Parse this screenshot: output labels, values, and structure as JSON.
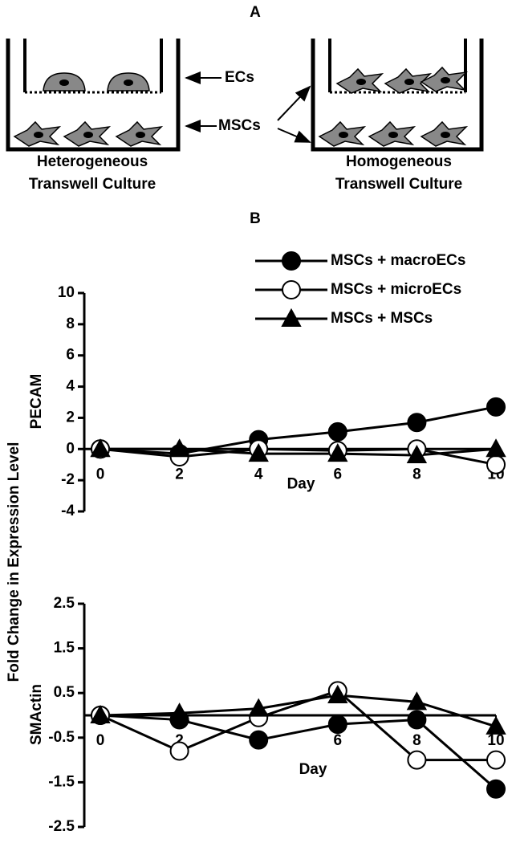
{
  "panel_labels": {
    "a": "A",
    "b": "B"
  },
  "diagram": {
    "ecs": "ECs",
    "mscs": "MSCs",
    "left_caption": [
      "Heterogeneous",
      "Transwell Culture"
    ],
    "right_caption": [
      "Homogeneous",
      "Transwell Culture"
    ]
  },
  "y_label_shared": "Fold Change in Expression Level",
  "chart_data": [
    {
      "type": "line",
      "y_label": "PECAM",
      "x_label": "Day",
      "x": [
        0,
        2,
        4,
        6,
        8,
        10
      ],
      "xlim": [
        0,
        10
      ],
      "xticks": [
        0,
        2,
        4,
        6,
        8,
        10
      ],
      "ylim": [
        -4,
        10
      ],
      "yticks": [
        -4,
        -2,
        0,
        2,
        4,
        6,
        8,
        10
      ],
      "series": [
        {
          "name": "MSCs + macroECs",
          "color": "#000000",
          "fill": "#000000",
          "marker": "circle",
          "values": [
            0,
            -0.3,
            0.6,
            1.1,
            1.7,
            2.7
          ]
        },
        {
          "name": "MSCs + microECs",
          "color": "#000000",
          "fill": "#ffffff",
          "marker": "circle",
          "values": [
            0,
            -0.5,
            0,
            -0.1,
            0,
            -1
          ]
        },
        {
          "name": "MSCs + MSCs",
          "color": "#000000",
          "fill": "#000000",
          "marker": "triangle",
          "values": [
            0,
            0,
            -0.3,
            -0.3,
            -0.4,
            0
          ]
        }
      ]
    },
    {
      "type": "line",
      "y_label": "SMActin",
      "x_label": "Day",
      "x": [
        0,
        2,
        4,
        6,
        8,
        10
      ],
      "xlim": [
        0,
        10
      ],
      "xticks": [
        0,
        2,
        4,
        6,
        8,
        10
      ],
      "ylim": [
        -2.5,
        2.5
      ],
      "yticks": [
        -2.5,
        -1.5,
        -0.5,
        0.5,
        1.5,
        2.5
      ],
      "series": [
        {
          "color": "#000000",
          "fill": "#000000",
          "marker": "circle",
          "values": [
            0,
            -0.1,
            -0.55,
            -0.2,
            -0.1,
            -1.65
          ]
        },
        {
          "color": "#000000",
          "fill": "#ffffff",
          "marker": "circle",
          "values": [
            0,
            -0.8,
            -0.05,
            0.55,
            -1.0,
            -1.0
          ]
        },
        {
          "color": "#000000",
          "fill": "#000000",
          "marker": "triangle",
          "values": [
            0,
            0.05,
            0.15,
            0.45,
            0.3,
            -0.25
          ]
        }
      ]
    }
  ]
}
